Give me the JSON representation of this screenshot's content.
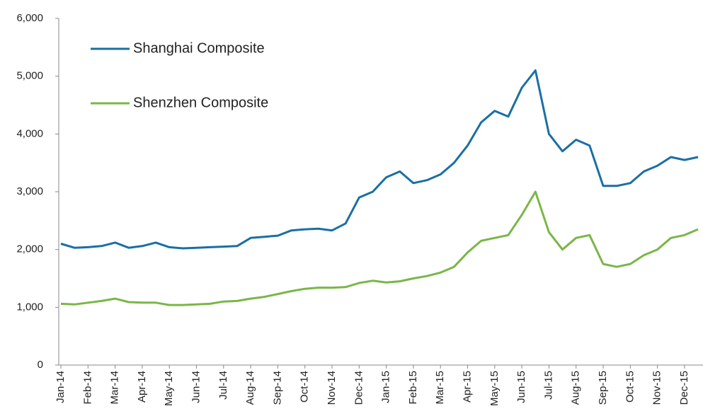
{
  "chart_data": {
    "type": "line",
    "categories": [
      "Jan-14",
      null,
      "Feb-14",
      null,
      "Mar-14",
      null,
      "Apr-14",
      null,
      "May-14",
      null,
      "Jun-14",
      null,
      "Jul-14",
      null,
      "Aug-14",
      null,
      "Sep-14",
      null,
      "Oct-14",
      null,
      "Nov-14",
      null,
      "Dec-14",
      null,
      "Jan-15",
      null,
      "Feb-15",
      null,
      "Mar-15",
      null,
      "Apr-15",
      null,
      "May-15",
      null,
      "Jun-15",
      null,
      "Jul-15",
      null,
      "Aug-15",
      null,
      "Sep-15",
      null,
      "Oct-15",
      null,
      "Nov-15",
      null,
      "Dec-15",
      null
    ],
    "series": [
      {
        "name": "Shanghai Composite",
        "color": "#1a6fa3",
        "values": [
          2100,
          2030,
          2040,
          2060,
          2120,
          2030,
          2060,
          2120,
          2040,
          2020,
          2030,
          2040,
          2050,
          2060,
          2200,
          2220,
          2240,
          2330,
          2350,
          2360,
          2330,
          2450,
          2900,
          3000,
          3250,
          3350,
          3150,
          3200,
          3300,
          3500,
          3800,
          4200,
          4400,
          4300,
          4800,
          5100,
          4000,
          3700,
          3900,
          3800,
          3100,
          3100,
          3150,
          3350,
          3450,
          3600,
          3550,
          3600
        ]
      },
      {
        "name": "Shenzhen Composite",
        "color": "#7ab648",
        "values": [
          1060,
          1050,
          1080,
          1110,
          1150,
          1090,
          1080,
          1080,
          1040,
          1040,
          1050,
          1060,
          1100,
          1110,
          1150,
          1180,
          1230,
          1280,
          1320,
          1340,
          1340,
          1350,
          1420,
          1460,
          1430,
          1450,
          1500,
          1540,
          1600,
          1700,
          1950,
          2150,
          2200,
          2250,
          2600,
          3000,
          2300,
          2000,
          2200,
          2250,
          1750,
          1700,
          1750,
          1900,
          2000,
          2200,
          2250,
          2350
        ]
      }
    ],
    "ylim": [
      0,
      6000
    ],
    "yticks": [
      0,
      {
        "value": 1000,
        "label": "1,000"
      },
      {
        "value": 2000,
        "label": "2,000"
      },
      {
        "value": 3000,
        "label": "3,000"
      },
      {
        "value": 4000,
        "label": "4,000"
      },
      {
        "value": 5000,
        "label": "5,000"
      },
      {
        "value": 6000,
        "label": "6,000"
      }
    ],
    "legend": "upper left"
  }
}
